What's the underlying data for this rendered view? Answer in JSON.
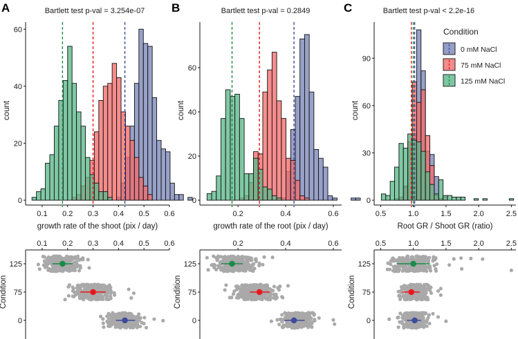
{
  "chart_data": [
    {
      "panel": "A",
      "type": "bar",
      "subtype": "histogram+strip",
      "title": "Bartlett test p-val = 3.254e-07",
      "xlabel": "growth rate of the shoot (pix / day)",
      "ylabel": "count",
      "xlim": [
        0.035,
        0.6
      ],
      "ylim": [
        0,
        62
      ],
      "xticks": [
        "0.1",
        "0.2",
        "0.3",
        "0.4",
        "0.5",
        "0.6"
      ],
      "xtick_values": [
        0.1,
        0.2,
        0.3,
        0.4,
        0.5,
        0.6
      ],
      "yticks": [
        "0",
        "20",
        "40",
        "60"
      ],
      "ytick_values": [
        0,
        20,
        40,
        60
      ],
      "bin_start": 0.06,
      "bin_width": 0.0175,
      "series": [
        {
          "name": "0 mM NaCl",
          "color": "#7b86b8",
          "mean": 0.425,
          "counts": [
            0,
            0,
            0,
            0,
            0,
            0,
            0,
            0,
            0,
            0,
            0,
            0,
            0,
            0,
            0,
            0,
            0,
            0,
            0,
            1,
            6,
            15,
            26,
            41,
            60,
            55,
            54,
            36,
            21,
            18,
            17,
            6,
            2,
            2,
            0,
            1
          ]
        },
        {
          "name": "75 mM NaCl",
          "color": "#f26d6d",
          "mean": 0.3,
          "counts": [
            0,
            0,
            0,
            0,
            0,
            0,
            0,
            0,
            0,
            1,
            2,
            5,
            8,
            14,
            24,
            35,
            40,
            41,
            48,
            43,
            31,
            26,
            21,
            15,
            8,
            5,
            2,
            0,
            0,
            0,
            0,
            0,
            0,
            0,
            0,
            0
          ]
        },
        {
          "name": "125 mM NaCl",
          "color": "#5cb88a",
          "mean": 0.18,
          "counts": [
            1,
            3,
            4,
            13,
            16,
            26,
            35,
            42,
            54,
            41,
            31,
            26,
            15,
            9,
            6,
            3,
            3,
            1,
            0,
            0,
            0,
            0,
            0,
            0,
            0,
            0,
            0,
            0,
            0,
            0,
            0,
            0,
            0,
            0,
            0,
            0
          ]
        }
      ],
      "strip": {
        "ylabel": "Condition",
        "categories": [
          "125",
          "75",
          "0"
        ],
        "xticks": [
          "0.1",
          "0.2",
          "0.3",
          "0.4",
          "0.5",
          "0.6"
        ],
        "summary": [
          {
            "condition": "125",
            "mean": 0.18,
            "lo": 0.14,
            "hi": 0.22,
            "color": "#1a8a4a",
            "range": [
              0.085,
              0.28
            ]
          },
          {
            "condition": "75",
            "mean": 0.3,
            "lo": 0.25,
            "hi": 0.35,
            "color": "#e8171b",
            "range": [
              0.19,
              0.41
            ]
          },
          {
            "condition": "0",
            "mean": 0.425,
            "lo": 0.39,
            "hi": 0.465,
            "color": "#3e4a9a",
            "range": [
              0.33,
              0.52
            ]
          }
        ],
        "outliers": [
          {
            "condition": "125",
            "x": [
              0.085,
              0.09,
              0.26,
              0.28,
              0.285
            ]
          },
          {
            "condition": "75",
            "x": [
              0.19,
              0.44,
              0.46,
              0.45
            ]
          },
          {
            "condition": "0",
            "x": [
              0.33,
              0.34,
              0.355,
              0.54,
              0.575
            ]
          }
        ]
      }
    },
    {
      "panel": "B",
      "type": "bar",
      "subtype": "histogram+strip",
      "title": "Bartlett test p-val = 0.2849",
      "xlabel": "growth rate of the root (pix / day)",
      "ylabel": "count",
      "xlim": [
        0.04,
        0.635
      ],
      "ylim": [
        0,
        80
      ],
      "xticks": [
        "0.2",
        "0.4",
        "0.6"
      ],
      "xtick_values": [
        0.2,
        0.4,
        0.6
      ],
      "yticks": [
        "0",
        "20",
        "40",
        "60"
      ],
      "ytick_values": [
        0,
        20,
        40,
        60
      ],
      "bin_start": 0.07,
      "bin_width": 0.0195,
      "series": [
        {
          "name": "0 mM NaCl",
          "color": "#7b86b8",
          "mean": 0.435,
          "counts": [
            0,
            0,
            0,
            0,
            0,
            0,
            0,
            0,
            0,
            0,
            0,
            0,
            0,
            0,
            0,
            0,
            1,
            13,
            32,
            47,
            73,
            75,
            49,
            23,
            19,
            15,
            2,
            1,
            0,
            0,
            0,
            1,
            1
          ]
        },
        {
          "name": "75 mM NaCl",
          "color": "#f26d6d",
          "mean": 0.29,
          "counts": [
            0,
            0,
            0,
            0,
            0,
            0,
            0,
            1,
            2,
            8,
            22,
            21,
            49,
            59,
            67,
            45,
            37,
            19,
            18,
            9,
            2,
            1,
            0,
            0,
            0,
            0,
            0,
            0,
            0,
            0,
            0,
            0,
            0
          ]
        },
        {
          "name": "125 mM NaCl",
          "color": "#5cb88a",
          "mean": 0.175,
          "counts": [
            3,
            4,
            11,
            37,
            50,
            47,
            48,
            37,
            12,
            12,
            19,
            14,
            6,
            5,
            2,
            1,
            0,
            0,
            0,
            0,
            0,
            0,
            0,
            0,
            0,
            0,
            0,
            0,
            0,
            0,
            0,
            0,
            0
          ]
        }
      ],
      "strip": {
        "ylabel": "Condition",
        "categories": [
          "125",
          "75",
          "0"
        ],
        "xticks": [
          "0.2",
          "0.4",
          "0.6"
        ],
        "summary": [
          {
            "condition": "125",
            "mean": 0.175,
            "lo": 0.13,
            "hi": 0.22,
            "color": "#1a8a4a",
            "range": [
              0.07,
              0.31
            ]
          },
          {
            "condition": "75",
            "mean": 0.29,
            "lo": 0.25,
            "hi": 0.335,
            "color": "#e8171b",
            "range": [
              0.145,
              0.41
            ]
          },
          {
            "condition": "0",
            "mean": 0.435,
            "lo": 0.395,
            "hi": 0.48,
            "color": "#3e4a9a",
            "range": [
              0.36,
              0.54
            ]
          }
        ],
        "outliers": [
          {
            "condition": "125",
            "x": [
              0.07,
              0.075,
              0.29,
              0.31,
              0.345
            ]
          },
          {
            "condition": "75",
            "x": [
              0.145,
              0.15,
              0.41
            ]
          },
          {
            "condition": "0",
            "x": [
              0.34,
              0.365,
              0.54,
              0.6,
              0.605
            ]
          }
        ]
      }
    },
    {
      "panel": "C",
      "type": "bar",
      "subtype": "histogram+strip",
      "title": "Bartlett test p-val < 2.2e-16",
      "xlabel": "Root GR / Shoot GR (ratio)",
      "ylabel": "count",
      "xlim": [
        0.4,
        2.57
      ],
      "ylim": [
        0,
        112
      ],
      "xticks": [
        "0.5",
        "1.0",
        "1.5",
        "2.0",
        "2.5"
      ],
      "xtick_values": [
        0.5,
        1.0,
        1.5,
        2.0,
        2.5
      ],
      "yticks": [
        "0",
        "30",
        "60",
        "90"
      ],
      "ytick_values": [
        0,
        30,
        60,
        90
      ],
      "bin_start": 0.51,
      "bin_width": 0.0675,
      "series": [
        {
          "name": "0 mM NaCl",
          "color": "#7b86b8",
          "mean": 1.02,
          "counts": [
            0,
            0,
            0,
            1,
            1,
            9,
            33,
            42,
            108,
            82,
            31,
            29,
            15,
            1,
            0,
            0,
            0,
            0,
            0,
            0,
            0,
            0,
            0,
            0,
            0,
            0,
            0,
            0,
            0,
            0
          ]
        },
        {
          "name": "75 mM NaCl",
          "color": "#f26d6d",
          "mean": 0.97,
          "counts": [
            0,
            0,
            0,
            0,
            2,
            8,
            37,
            75,
            62,
            70,
            41,
            22,
            3,
            1,
            2,
            0,
            0,
            0,
            0,
            0,
            0,
            0,
            0,
            0,
            0,
            0,
            0,
            0,
            0,
            0
          ]
        },
        {
          "name": "125 mM NaCl",
          "color": "#5cb88a",
          "mean": 1.0,
          "counts": [
            4,
            3,
            12,
            21,
            36,
            33,
            42,
            38,
            37,
            31,
            18,
            10,
            4,
            13,
            3,
            3,
            2,
            2,
            2,
            0,
            0,
            1,
            0,
            1,
            0,
            0,
            0,
            0,
            0,
            1
          ]
        }
      ],
      "legend": {
        "title": "Condition",
        "position": "top-right",
        "items": [
          {
            "label": "0 mM NaCl",
            "color": "#7b86b8",
            "line": "#3e4a9a"
          },
          {
            "label": "75 mM NaCl",
            "color": "#f26d6d",
            "line": "#e8171b"
          },
          {
            "label": "125 mM NaCl",
            "color": "#5cb88a",
            "line": "#1a8a4a"
          }
        ]
      },
      "strip": {
        "ylabel": "Condition",
        "categories": [
          "125",
          "75",
          "0"
        ],
        "xticks": [
          "0.5",
          "1.0",
          "1.5",
          "2.0",
          "2.5"
        ],
        "summary": [
          {
            "condition": "125",
            "mean": 1.0,
            "lo": 0.75,
            "hi": 1.25,
            "color": "#1a8a4a",
            "range": [
              0.52,
              1.45
            ]
          },
          {
            "condition": "75",
            "mean": 0.97,
            "lo": 0.83,
            "hi": 1.1,
            "color": "#e8171b",
            "range": [
              0.7,
              1.35
            ]
          },
          {
            "condition": "0",
            "mean": 1.02,
            "lo": 0.9,
            "hi": 1.12,
            "color": "#3e4a9a",
            "range": [
              0.73,
              1.3
            ]
          }
        ],
        "outliers": [
          {
            "condition": "125",
            "x": [
              1.55,
              1.62,
              1.73,
              1.74,
              1.88,
              2.06,
              2.5
            ]
          },
          {
            "condition": "75",
            "x": [
              1.38,
              1.42,
              1.42
            ]
          },
          {
            "condition": "0",
            "x": [
              0.63,
              1.3,
              1.38,
              1.5
            ]
          }
        ]
      }
    }
  ],
  "mean_line_colors": {
    "0 mM NaCl": "#3e4a9a",
    "75 mM NaCl": "#e8171b",
    "125 mM NaCl": "#1a8a4a"
  }
}
